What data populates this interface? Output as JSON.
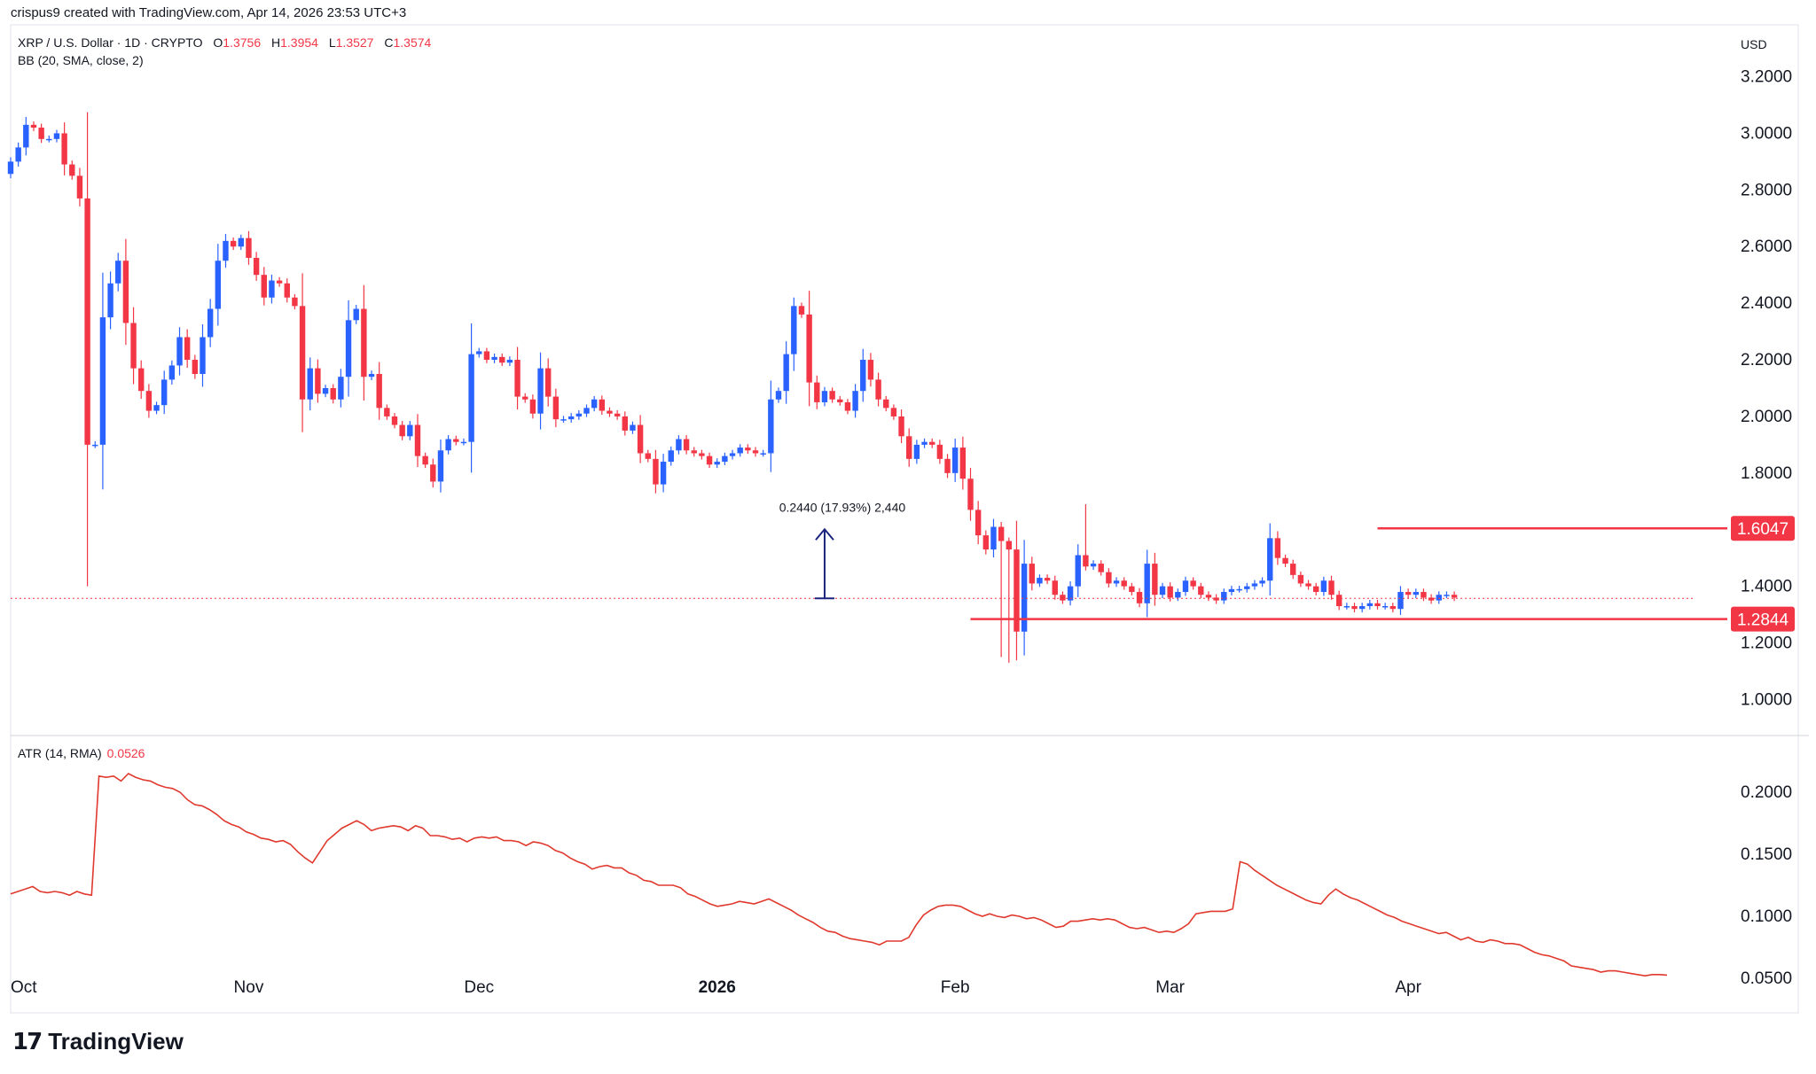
{
  "header": {
    "attribution": "crispus9 created with TradingView.com, Apr 14, 2026 23:53 UTC+3"
  },
  "legend": {
    "symbol": "XRP / U.S. Dollar · 1D · CRYPTO",
    "open_label": "O",
    "open": "1.3756",
    "high_label": "H",
    "high": "1.3954",
    "low_label": "L",
    "low": "1.3527",
    "close_label": "C",
    "close": "1.3574",
    "indicator": "BB (20, SMA, close, 2)"
  },
  "atr_legend": {
    "label": "ATR (14, RMA)",
    "value": "0.0526"
  },
  "currency": "USD",
  "brand": {
    "logo_mark": "17",
    "name": "TradingView"
  },
  "colors": {
    "up": "#2962ff",
    "down": "#f23645",
    "atr_line": "#e0392e",
    "level_line": "#f23645",
    "measure": "#1a237e",
    "grid": "#e0e3eb"
  },
  "chart_data": [
    {
      "type": "candlestick",
      "title": "XRP / U.S. Dollar · 1D · CRYPTO",
      "ylim": [
        0.92,
        3.33
      ],
      "y_ticks": [
        "3.2000",
        "3.0000",
        "2.8000",
        "2.6000",
        "2.4000",
        "2.2000",
        "2.0000",
        "1.8000",
        "1.4000",
        "1.2000",
        "1.0000"
      ],
      "x_ticks": [
        {
          "label": "Oct",
          "day": 0
        },
        {
          "label": "Nov",
          "day": 31
        },
        {
          "label": "Dec",
          "day": 61
        },
        {
          "label": "2026",
          "day": 92
        },
        {
          "label": "Feb",
          "day": 123
        },
        {
          "label": "Mar",
          "day": 151
        },
        {
          "label": "Apr",
          "day": 182
        }
      ],
      "close_prices": [
        2.9,
        2.95,
        3.03,
        3.02,
        2.98,
        2.98,
        3.0,
        2.89,
        2.85,
        2.77,
        1.9,
        1.9,
        2.35,
        2.47,
        2.55,
        2.33,
        2.17,
        2.09,
        2.02,
        2.04,
        2.13,
        2.18,
        2.28,
        2.2,
        2.15,
        2.28,
        2.38,
        2.55,
        2.62,
        2.6,
        2.63,
        2.56,
        2.5,
        2.42,
        2.48,
        2.47,
        2.42,
        2.39,
        2.06,
        2.17,
        2.08,
        2.1,
        2.06,
        2.14,
        2.34,
        2.38,
        2.14,
        2.15,
        2.03,
        2.0,
        1.97,
        1.93,
        1.97,
        1.86,
        1.83,
        1.77,
        1.88,
        1.92,
        1.91,
        1.91,
        2.22,
        2.23,
        2.2,
        2.21,
        2.19,
        2.2,
        2.07,
        2.06,
        2.01,
        2.17,
        2.07,
        1.99,
        1.99,
        2.0,
        2.01,
        2.03,
        2.06,
        2.02,
        2.01,
        2.0,
        1.95,
        1.97,
        1.87,
        1.85,
        1.76,
        1.84,
        1.88,
        1.92,
        1.88,
        1.87,
        1.86,
        1.83,
        1.84,
        1.86,
        1.87,
        1.89,
        1.88,
        1.87,
        1.87,
        2.06,
        2.09,
        2.22,
        2.39,
        2.36,
        2.12,
        2.05,
        2.09,
        2.06,
        2.05,
        2.02,
        2.09,
        2.2,
        2.13,
        2.06,
        2.03,
        2.0,
        1.93,
        1.85,
        1.9,
        1.91,
        1.9,
        1.85,
        1.8,
        1.89,
        1.78,
        1.67,
        1.58,
        1.53,
        1.61,
        1.56,
        1.53,
        1.24,
        1.48,
        1.41,
        1.43,
        1.42,
        1.37,
        1.35,
        1.4,
        1.51,
        1.47,
        1.48,
        1.45,
        1.41,
        1.42,
        1.4,
        1.38,
        1.34,
        1.48,
        1.37,
        1.4,
        1.36,
        1.38,
        1.42,
        1.4,
        1.37,
        1.36,
        1.35,
        1.38,
        1.39,
        1.39,
        1.4,
        1.41,
        1.42,
        1.57,
        1.5,
        1.48,
        1.44,
        1.41,
        1.4,
        1.38,
        1.42,
        1.37,
        1.33,
        1.33,
        1.32,
        1.33,
        1.34,
        1.33,
        1.33,
        1.32,
        1.38,
        1.37,
        1.38,
        1.36,
        1.35,
        1.37,
        1.37,
        1.36
      ],
      "price_line": 1.3574,
      "levels": [
        {
          "label": "1.6047",
          "value": 1.6047,
          "from_day": 178,
          "to_day": 228
        },
        {
          "label": "1.2844",
          "value": 1.2844,
          "from_day": 125,
          "to_day": 228
        }
      ],
      "measure": {
        "label": "0.2440 (17.93%) 2,440",
        "from": 1.3574,
        "to": 1.6014,
        "day": 106
      }
    },
    {
      "type": "line",
      "title": "ATR (14, RMA)",
      "ylim": [
        0.035,
        0.235
      ],
      "y_ticks": [
        "0.2000",
        "0.1500",
        "0.1000",
        "0.0500"
      ],
      "values": [
        0.118,
        0.12,
        0.122,
        0.124,
        0.12,
        0.119,
        0.12,
        0.119,
        0.117,
        0.12,
        0.118,
        0.117,
        0.213,
        0.212,
        0.213,
        0.209,
        0.215,
        0.212,
        0.21,
        0.209,
        0.206,
        0.204,
        0.203,
        0.2,
        0.194,
        0.19,
        0.189,
        0.186,
        0.182,
        0.177,
        0.174,
        0.172,
        0.168,
        0.166,
        0.163,
        0.162,
        0.16,
        0.161,
        0.158,
        0.152,
        0.147,
        0.143,
        0.152,
        0.161,
        0.166,
        0.171,
        0.174,
        0.177,
        0.174,
        0.169,
        0.171,
        0.172,
        0.173,
        0.172,
        0.169,
        0.173,
        0.171,
        0.165,
        0.165,
        0.164,
        0.162,
        0.163,
        0.16,
        0.163,
        0.164,
        0.163,
        0.164,
        0.161,
        0.161,
        0.16,
        0.157,
        0.16,
        0.159,
        0.157,
        0.153,
        0.151,
        0.147,
        0.144,
        0.142,
        0.138,
        0.14,
        0.141,
        0.139,
        0.139,
        0.135,
        0.133,
        0.129,
        0.128,
        0.125,
        0.125,
        0.125,
        0.123,
        0.118,
        0.116,
        0.113,
        0.11,
        0.108,
        0.109,
        0.11,
        0.112,
        0.111,
        0.11,
        0.112,
        0.114,
        0.111,
        0.108,
        0.105,
        0.101,
        0.098,
        0.095,
        0.091,
        0.088,
        0.087,
        0.084,
        0.082,
        0.081,
        0.08,
        0.079,
        0.077,
        0.08,
        0.08,
        0.08,
        0.083,
        0.093,
        0.101,
        0.105,
        0.108,
        0.109,
        0.109,
        0.108,
        0.105,
        0.102,
        0.1,
        0.102,
        0.1,
        0.099,
        0.101,
        0.1,
        0.098,
        0.099,
        0.097,
        0.094,
        0.091,
        0.092,
        0.096,
        0.096,
        0.097,
        0.098,
        0.097,
        0.098,
        0.097,
        0.094,
        0.091,
        0.09,
        0.091,
        0.089,
        0.087,
        0.088,
        0.087,
        0.09,
        0.094,
        0.102,
        0.103,
        0.104,
        0.104,
        0.104,
        0.106,
        0.144,
        0.142,
        0.137,
        0.133,
        0.129,
        0.125,
        0.122,
        0.119,
        0.116,
        0.113,
        0.111,
        0.11,
        0.117,
        0.122,
        0.118,
        0.115,
        0.113,
        0.11,
        0.107,
        0.104,
        0.101,
        0.099,
        0.096,
        0.094,
        0.092,
        0.09,
        0.088,
        0.086,
        0.087,
        0.084,
        0.081,
        0.083,
        0.08,
        0.079,
        0.081,
        0.08,
        0.078,
        0.078,
        0.077,
        0.074,
        0.071,
        0.069,
        0.068,
        0.066,
        0.064,
        0.06,
        0.059,
        0.058,
        0.057,
        0.055,
        0.056,
        0.056,
        0.055,
        0.054,
        0.053,
        0.052,
        0.053,
        0.053,
        0.0526
      ],
      "value_label": "0.0526"
    }
  ]
}
